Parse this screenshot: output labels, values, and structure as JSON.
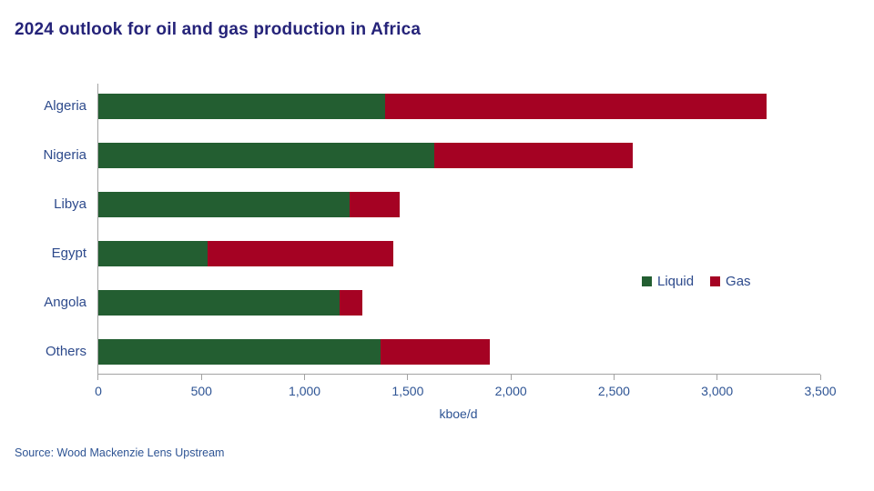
{
  "title": "2024 outlook for oil and gas production in Africa",
  "source": "Source: Wood Mackenzie Lens Upstream",
  "colors": {
    "title": "#252379",
    "category_label": "#2d4a8c",
    "tick_label": "#2e5494",
    "axis": "#a3a3a3",
    "liquid": "#235e31",
    "gas": "#a50223"
  },
  "chart_data": {
    "type": "bar",
    "orientation": "horizontal",
    "stacked": true,
    "title": "2024 outlook for oil and gas production in Africa",
    "categories": [
      "Algeria",
      "Nigeria",
      "Libya",
      "Egypt",
      "Angola",
      "Others"
    ],
    "series": [
      {
        "name": "Liquid",
        "color": "#235e31",
        "values": [
          1390,
          1630,
          1220,
          530,
          1170,
          1370
        ]
      },
      {
        "name": "Gas",
        "color": "#a50223",
        "values": [
          1850,
          960,
          240,
          900,
          110,
          530
        ]
      }
    ],
    "totals": [
      3240,
      2590,
      1460,
      1430,
      1280,
      1900
    ],
    "xlabel": "kboe/d",
    "ylabel": "",
    "xlim": [
      0,
      3500
    ],
    "x_ticks": [
      0,
      500,
      1000,
      1500,
      2000,
      2500,
      3000,
      3500
    ],
    "x_tick_labels": [
      "0",
      "500",
      "1,000",
      "1,500",
      "2,000",
      "2,500",
      "3,000",
      "3,500"
    ],
    "grid": false,
    "legend_position": "right-middle",
    "legend_entries": [
      "Liquid",
      "Gas"
    ]
  }
}
